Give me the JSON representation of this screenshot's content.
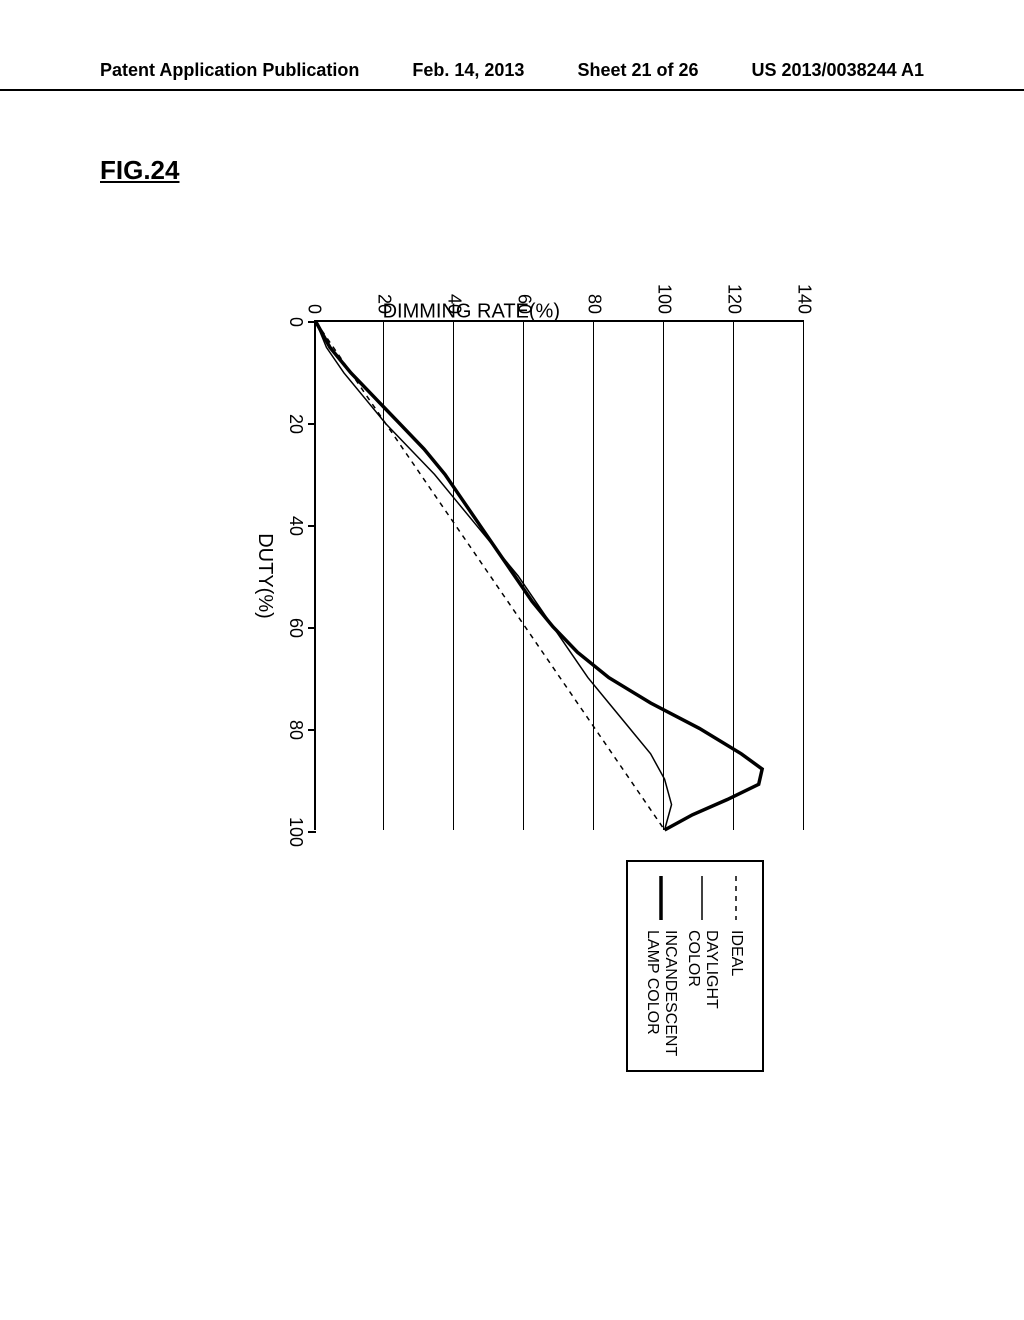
{
  "header": {
    "pub_label": "Patent Application Publication",
    "date": "Feb. 14, 2013",
    "sheet": "Sheet 21 of 26",
    "pub_number": "US 2013/0038244 A1"
  },
  "figure_label": "FIG.24",
  "chart": {
    "type": "line",
    "xlabel": "DUTY(%)",
    "ylabel": "DIMMING RATE(%)",
    "xlim": [
      0,
      100
    ],
    "ylim": [
      0,
      140
    ],
    "xtick_step": 20,
    "ytick_step": 20,
    "xtick_labels": [
      "0",
      "20",
      "40",
      "60",
      "80",
      "100"
    ],
    "ytick_labels": [
      "0",
      "20",
      "40",
      "60",
      "80",
      "100",
      "120",
      "140"
    ],
    "background_color": "#ffffff",
    "grid_color": "#000000",
    "axis_color": "#000000",
    "label_fontsize": 20,
    "tick_fontsize": 18,
    "series": [
      {
        "name": "IDEAL",
        "color": "#000000",
        "stroke_width": 1.5,
        "dash": "5,5",
        "points": [
          [
            0,
            0
          ],
          [
            100,
            100
          ]
        ]
      },
      {
        "name": "DAYLIGHT COLOR",
        "color": "#000000",
        "stroke_width": 1.5,
        "dash": "none",
        "points": [
          [
            0,
            0
          ],
          [
            5,
            3
          ],
          [
            10,
            8
          ],
          [
            15,
            14
          ],
          [
            20,
            20
          ],
          [
            25,
            27
          ],
          [
            30,
            34
          ],
          [
            35,
            40
          ],
          [
            40,
            46
          ],
          [
            45,
            52
          ],
          [
            50,
            58
          ],
          [
            55,
            63
          ],
          [
            60,
            68
          ],
          [
            65,
            73
          ],
          [
            70,
            78
          ],
          [
            75,
            84
          ],
          [
            80,
            90
          ],
          [
            85,
            96
          ],
          [
            90,
            100
          ],
          [
            95,
            102
          ],
          [
            100,
            100
          ]
        ]
      },
      {
        "name": "INCANDESCENT\nLAMP COLOR",
        "color": "#000000",
        "stroke_width": 3.5,
        "dash": "none",
        "points": [
          [
            0,
            0
          ],
          [
            5,
            4
          ],
          [
            10,
            10
          ],
          [
            15,
            17
          ],
          [
            20,
            24
          ],
          [
            25,
            31
          ],
          [
            30,
            37
          ],
          [
            35,
            42
          ],
          [
            40,
            47
          ],
          [
            45,
            52
          ],
          [
            50,
            57
          ],
          [
            55,
            62
          ],
          [
            60,
            68
          ],
          [
            65,
            75
          ],
          [
            70,
            84
          ],
          [
            75,
            96
          ],
          [
            80,
            110
          ],
          [
            85,
            122
          ],
          [
            88,
            128
          ],
          [
            91,
            127
          ],
          [
            94,
            118
          ],
          [
            97,
            108
          ],
          [
            100,
            100
          ]
        ]
      }
    ],
    "legend": {
      "items": [
        {
          "label": "IDEAL",
          "stroke_width": 1.5,
          "dash": "5,5"
        },
        {
          "label": "DAYLIGHT COLOR",
          "stroke_width": 1.5,
          "dash": "none"
        },
        {
          "label": "INCANDESCENT\nLAMP COLOR",
          "stroke_width": 3.5,
          "dash": "none"
        }
      ]
    }
  }
}
